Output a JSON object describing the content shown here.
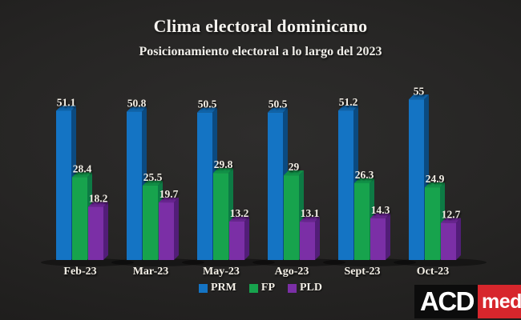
{
  "header": {
    "title": "Clima electoral dominicano",
    "subtitle": "Posicionamiento electoral a lo largo del 2023"
  },
  "chart_data": {
    "type": "bar",
    "style": "3d-grouped-columns",
    "title": "Clima electoral dominicano",
    "subtitle": "Posicionamiento electoral a lo largo del 2023",
    "categories": [
      "Feb-23",
      "Mar-23",
      "May-23",
      "Ago-23",
      "Sept-23",
      "Oct-23"
    ],
    "series": [
      {
        "name": "PRM",
        "color": "#1474c4",
        "top_color": "#0f63a8",
        "side_color": "#0b4a80",
        "values": [
          51.1,
          50.8,
          50.5,
          50.5,
          51.2,
          55
        ]
      },
      {
        "name": "FP",
        "color": "#17a34d",
        "top_color": "#119047",
        "side_color": "#0d7a44",
        "values": [
          28.4,
          25.5,
          29.8,
          29,
          26.3,
          24.9
        ]
      },
      {
        "name": "PLD",
        "color": "#7b2fa6",
        "top_color": "#67248f",
        "side_color": "#521d78",
        "values": [
          18.2,
          19.7,
          13.2,
          13.1,
          14.3,
          12.7
        ]
      }
    ],
    "value_labels_shown": true,
    "xlabel": "",
    "ylabel": "",
    "ylim": [
      0,
      60
    ],
    "grid": false,
    "axes_shown": false,
    "legend_position": "bottom-center",
    "background_color": "#262524",
    "text_color": "#f3efe6"
  },
  "legend": {
    "items": [
      {
        "label": "PRM",
        "color": "#1474c4"
      },
      {
        "label": "FP",
        "color": "#17a34d"
      },
      {
        "label": "PLD",
        "color": "#7b2fa6"
      }
    ]
  },
  "logo": {
    "black_text": "ACD",
    "red_text": "med",
    "black_bg": "#0c0c0c",
    "red_bg": "#d7262c"
  }
}
